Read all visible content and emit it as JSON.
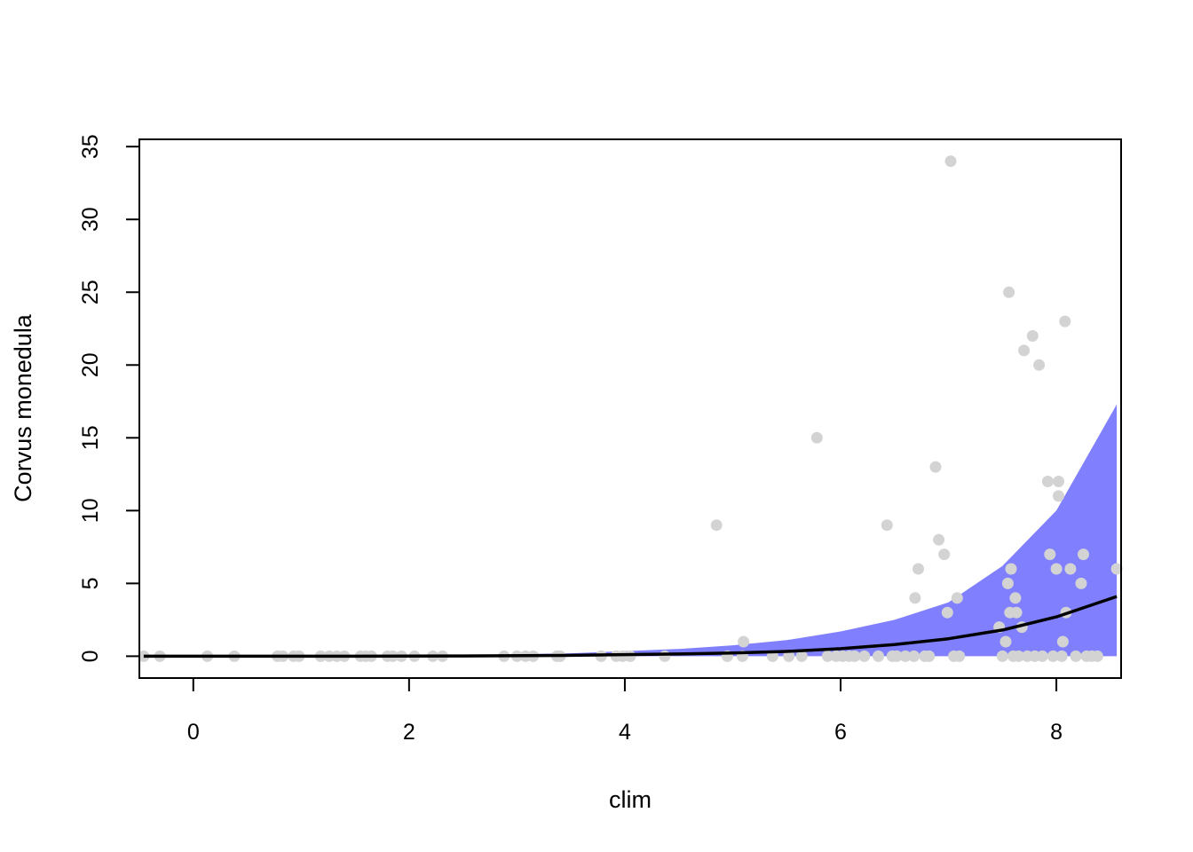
{
  "chart_data": {
    "type": "scatter",
    "xlabel": "clim",
    "ylabel": "Corvus monedula",
    "xlim": [
      -0.5,
      8.6
    ],
    "ylim": [
      -1.5,
      35.5
    ],
    "xticks": [
      0,
      2,
      4,
      6,
      8
    ],
    "yticks": [
      0,
      5,
      10,
      15,
      20,
      25,
      30,
      35
    ],
    "grid": false,
    "colors": {
      "points": "#d3d3d3",
      "band": "#8080ff",
      "line": "#000000",
      "axis": "#000000"
    },
    "points": [
      [
        -0.46,
        0
      ],
      [
        -0.31,
        0
      ],
      [
        0.13,
        0
      ],
      [
        0.38,
        0
      ],
      [
        0.78,
        0
      ],
      [
        0.83,
        0
      ],
      [
        0.93,
        0
      ],
      [
        0.98,
        0
      ],
      [
        1.18,
        0
      ],
      [
        1.26,
        0
      ],
      [
        1.33,
        0
      ],
      [
        1.4,
        0
      ],
      [
        1.55,
        0
      ],
      [
        1.6,
        0
      ],
      [
        1.65,
        0
      ],
      [
        1.8,
        0
      ],
      [
        1.85,
        0
      ],
      [
        1.93,
        0
      ],
      [
        2.05,
        0
      ],
      [
        2.22,
        0
      ],
      [
        2.31,
        0
      ],
      [
        2.88,
        0
      ],
      [
        3.0,
        0
      ],
      [
        3.08,
        0
      ],
      [
        3.15,
        0
      ],
      [
        3.37,
        0
      ],
      [
        3.4,
        0
      ],
      [
        3.78,
        0
      ],
      [
        3.92,
        0
      ],
      [
        3.98,
        0
      ],
      [
        4.05,
        0
      ],
      [
        4.37,
        0
      ],
      [
        4.85,
        9
      ],
      [
        4.95,
        0
      ],
      [
        5.09,
        0
      ],
      [
        5.1,
        1
      ],
      [
        5.37,
        0
      ],
      [
        5.52,
        0
      ],
      [
        5.64,
        0
      ],
      [
        5.78,
        15
      ],
      [
        5.88,
        0
      ],
      [
        5.96,
        0
      ],
      [
        6.02,
        0
      ],
      [
        6.08,
        0
      ],
      [
        6.13,
        0
      ],
      [
        6.22,
        0
      ],
      [
        6.35,
        0
      ],
      [
        6.43,
        9
      ],
      [
        6.48,
        0
      ],
      [
        6.52,
        0
      ],
      [
        6.6,
        0
      ],
      [
        6.68,
        0
      ],
      [
        6.69,
        4
      ],
      [
        6.72,
        6
      ],
      [
        6.78,
        0
      ],
      [
        6.82,
        0
      ],
      [
        6.88,
        13
      ],
      [
        6.91,
        8
      ],
      [
        6.96,
        7
      ],
      [
        6.99,
        3
      ],
      [
        7.02,
        34
      ],
      [
        7.05,
        0
      ],
      [
        7.08,
        4
      ],
      [
        7.1,
        0
      ],
      [
        7.47,
        2
      ],
      [
        7.5,
        0
      ],
      [
        7.53,
        1
      ],
      [
        7.55,
        5
      ],
      [
        7.56,
        25
      ],
      [
        7.57,
        3
      ],
      [
        7.58,
        6
      ],
      [
        7.6,
        0
      ],
      [
        7.62,
        4
      ],
      [
        7.63,
        3
      ],
      [
        7.65,
        0
      ],
      [
        7.68,
        2
      ],
      [
        7.7,
        21
      ],
      [
        7.73,
        0
      ],
      [
        7.78,
        22
      ],
      [
        7.8,
        0
      ],
      [
        7.84,
        20
      ],
      [
        7.87,
        0
      ],
      [
        7.92,
        12
      ],
      [
        7.94,
        7
      ],
      [
        7.97,
        0
      ],
      [
        8.0,
        6
      ],
      [
        8.02,
        12
      ],
      [
        8.02,
        11
      ],
      [
        8.05,
        0
      ],
      [
        8.06,
        1
      ],
      [
        8.08,
        23
      ],
      [
        8.09,
        3
      ],
      [
        8.13,
        6
      ],
      [
        8.18,
        0
      ],
      [
        8.23,
        5
      ],
      [
        8.25,
        7
      ],
      [
        8.28,
        0
      ],
      [
        8.33,
        0
      ],
      [
        8.38,
        0
      ],
      [
        8.56,
        6
      ]
    ],
    "fit_x": [
      -0.46,
      0.5,
      1.5,
      2.5,
      3.5,
      4.5,
      5.0,
      5.5,
      6.0,
      6.5,
      7.0,
      7.5,
      8.0,
      8.56
    ],
    "fit_y": [
      0,
      0,
      0,
      0.02,
      0.06,
      0.15,
      0.22,
      0.33,
      0.52,
      0.8,
      1.2,
      1.8,
      2.7,
      4.1
    ],
    "fit_lower": [
      0,
      0,
      0,
      0,
      0,
      0,
      0,
      0,
      0,
      0,
      0,
      0,
      0,
      0
    ],
    "fit_upper": [
      0.02,
      0.03,
      0.05,
      0.08,
      0.2,
      0.5,
      0.75,
      1.1,
      1.7,
      2.5,
      3.7,
      6.2,
      10.0,
      17.3
    ]
  }
}
